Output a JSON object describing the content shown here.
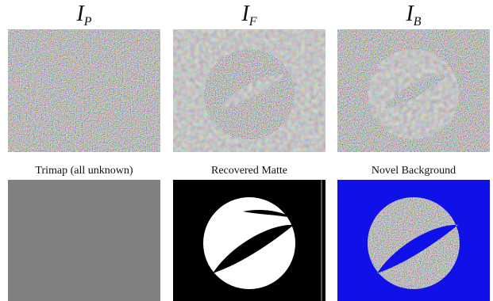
{
  "figure": {
    "top_row": [
      {
        "name": "ip",
        "symbol": "I",
        "subscript": "P"
      },
      {
        "name": "if",
        "symbol": "I",
        "subscript": "F"
      },
      {
        "name": "ib",
        "symbol": "I",
        "subscript": "B"
      }
    ],
    "bottom_row": [
      {
        "name": "trimap",
        "caption": "Trimap (all unknown)"
      },
      {
        "name": "matte",
        "caption": "Recovered Matte"
      },
      {
        "name": "novel",
        "caption": "Novel Background"
      }
    ],
    "colors": {
      "trimap_gray": "#808080",
      "novel_blue": "#1010e8",
      "matte_fg": "#ffffff",
      "matte_bg": "#000000"
    }
  }
}
